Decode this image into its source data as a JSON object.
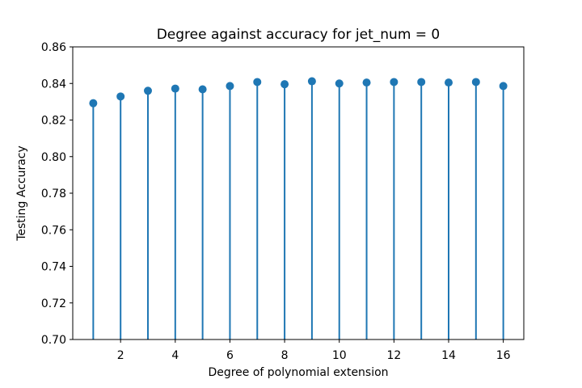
{
  "chart_data": {
    "type": "stem",
    "title": "Degree against accuracy for jet_num = 0",
    "xlabel": "Degree of polynomial extension",
    "ylabel": "Testing Accuracy",
    "x": [
      1,
      2,
      3,
      4,
      5,
      6,
      7,
      8,
      9,
      10,
      11,
      12,
      13,
      14,
      15,
      16
    ],
    "y": [
      0.8292,
      0.8329,
      0.836,
      0.8372,
      0.8368,
      0.8386,
      0.8408,
      0.8396,
      0.8412,
      0.84,
      0.8405,
      0.8408,
      0.8408,
      0.8405,
      0.8408,
      0.8386
    ],
    "xlim": [
      0.25,
      16.75
    ],
    "ylim": [
      0.7,
      0.86
    ],
    "xticks": [
      2,
      4,
      6,
      8,
      10,
      12,
      14,
      16
    ],
    "xtick_labels": [
      "2",
      "4",
      "6",
      "8",
      "10",
      "12",
      "14",
      "16"
    ],
    "yticks": [
      0.7,
      0.72,
      0.74,
      0.76,
      0.78,
      0.8,
      0.82,
      0.84,
      0.86
    ],
    "ytick_labels": [
      "0.70",
      "0.72",
      "0.74",
      "0.76",
      "0.78",
      "0.80",
      "0.82",
      "0.84",
      "0.86"
    ],
    "grid": false,
    "color": "#1f77b4"
  }
}
